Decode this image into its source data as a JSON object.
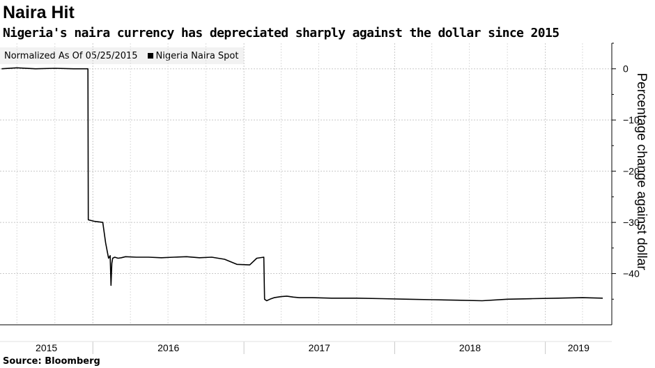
{
  "header": {
    "title": "Naira Hit",
    "subtitle": "Nigeria's naira currency has depreciated sharply against the dollar since 2015"
  },
  "legend": {
    "note": "Normalized As Of 05/25/2015",
    "series_label": "Nigeria Naira Spot"
  },
  "footer": {
    "source": "Source: Bloomberg"
  },
  "chart_data": {
    "type": "line",
    "title": "Naira Hit",
    "subtitle": "Nigeria's naira currency has depreciated sharply against the dollar since 2015",
    "ylabel": "Percentage change against dollar",
    "xlabel": "",
    "ylim": [
      -50,
      5
    ],
    "yticks": [
      0,
      -10,
      -20,
      -30,
      -40
    ],
    "x_tick_labels": [
      "2015",
      "2016",
      "2017",
      "2018",
      "2019"
    ],
    "grid": true,
    "legend_position": "top-left",
    "series": [
      {
        "name": "Nigeria Naira Spot",
        "color": "#000000",
        "x": [
          "2015-05-25",
          "2015-07-01",
          "2015-08-15",
          "2015-10-01",
          "2015-11-15",
          "2015-12-10",
          "2015-12-20",
          "2015-12-21",
          "2016-01-05",
          "2016-01-25",
          "2016-02-01",
          "2016-02-08",
          "2016-02-12",
          "2016-02-14",
          "2016-02-16",
          "2016-02-18",
          "2016-02-23",
          "2016-03-02",
          "2016-03-10",
          "2016-03-20",
          "2016-04-15",
          "2016-05-15",
          "2016-06-15",
          "2016-07-15",
          "2016-08-15",
          "2016-09-15",
          "2016-10-15",
          "2016-11-15",
          "2016-12-15",
          "2017-01-15",
          "2017-02-01",
          "2017-02-18",
          "2017-02-20",
          "2017-02-25",
          "2017-03-05",
          "2017-03-15",
          "2017-04-01",
          "2017-04-15",
          "2017-05-01",
          "2017-05-15",
          "2017-06-15",
          "2017-08-01",
          "2017-10-01",
          "2017-12-01",
          "2018-02-01",
          "2018-04-01",
          "2018-06-01",
          "2018-08-01",
          "2018-10-01",
          "2018-12-01",
          "2019-02-01",
          "2019-04-01",
          "2019-05-20"
        ],
        "values": [
          0,
          0.2,
          0,
          0.1,
          0,
          0,
          0,
          -29.5,
          -29.8,
          -30,
          -34,
          -37,
          -36.5,
          -42.3,
          -38,
          -37,
          -36.8,
          -37,
          -36.9,
          -36.7,
          -36.8,
          -36.8,
          -36.9,
          -36.8,
          -36.7,
          -36.9,
          -36.8,
          -37.2,
          -38.2,
          -38.3,
          -37,
          -36.8,
          -45,
          -45.3,
          -45,
          -44.7,
          -44.5,
          -44.4,
          -44.6,
          -44.7,
          -44.7,
          -44.8,
          -44.8,
          -44.9,
          -45.0,
          -45.1,
          -45.2,
          -45.3,
          -45.0,
          -44.9,
          -44.8,
          -44.7,
          -44.8
        ]
      }
    ]
  }
}
